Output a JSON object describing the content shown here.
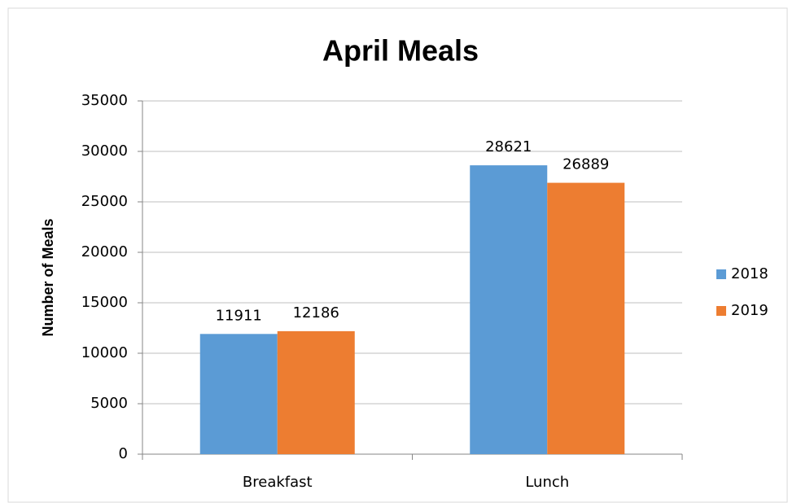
{
  "chart_data": {
    "type": "bar",
    "title": "April Meals",
    "y_label": "Number of Meals",
    "categories": [
      "Breakfast",
      "Lunch"
    ],
    "series": [
      {
        "name": "2018",
        "color": "#5b9bd5",
        "values": [
          11911,
          28621
        ]
      },
      {
        "name": "2019",
        "color": "#ed7d31",
        "values": [
          12186,
          26889
        ]
      }
    ],
    "ylim": [
      0,
      35000
    ],
    "yticks": [
      0,
      5000,
      10000,
      15000,
      20000,
      25000,
      30000,
      35000
    ],
    "grid": true,
    "legend": "right",
    "data_labels": true
  }
}
